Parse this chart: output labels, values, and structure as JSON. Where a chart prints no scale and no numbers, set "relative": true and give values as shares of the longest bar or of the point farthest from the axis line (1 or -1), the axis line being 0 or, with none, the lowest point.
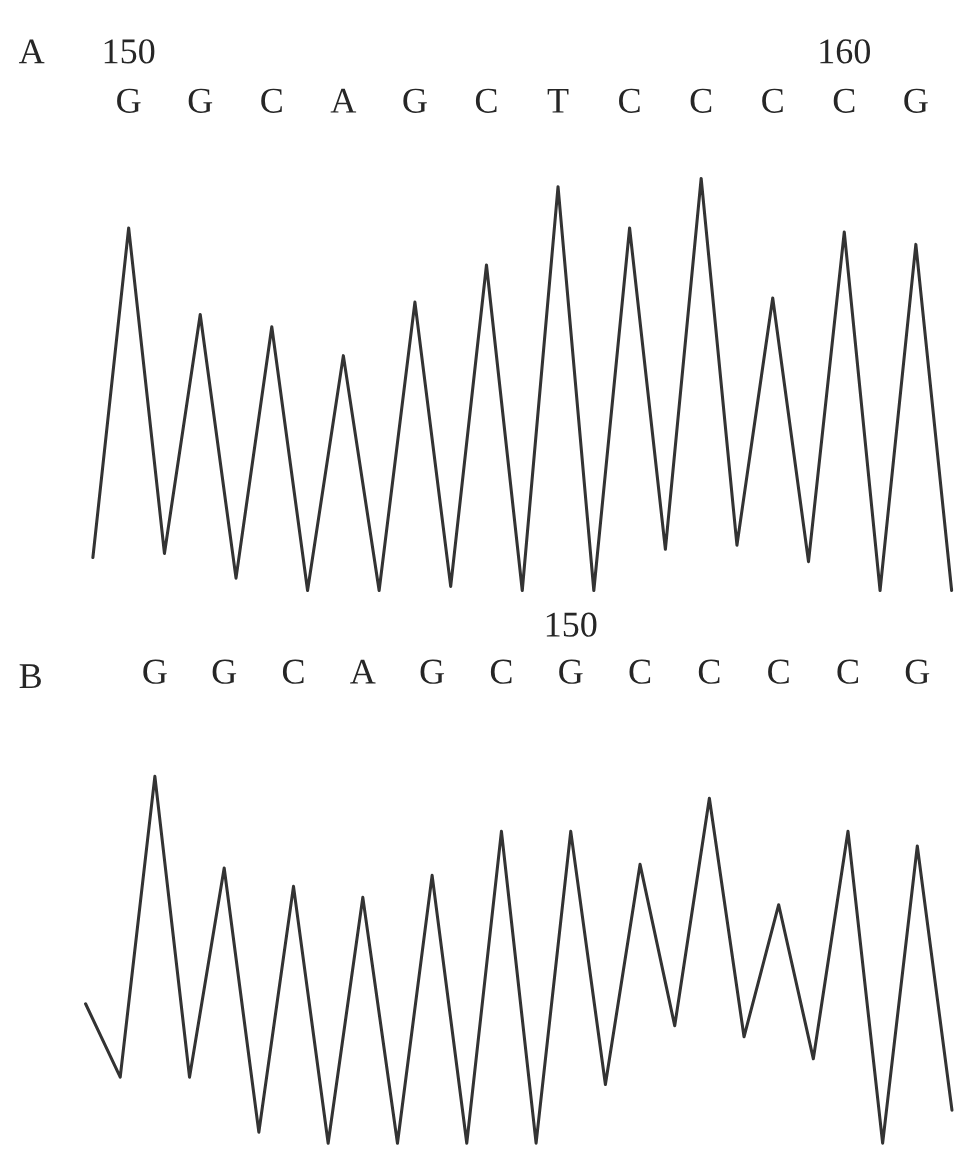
{
  "chart_data": [
    {
      "type": "line",
      "title": "A",
      "relative": true,
      "tick_labels": "x",
      "grid": false,
      "legend": false,
      "marker": "none",
      "line_style": "solid",
      "categories": [
        null,
        "G",
        null,
        "G",
        null,
        "C",
        null,
        "A",
        null,
        "G",
        null,
        "C",
        null,
        "T",
        null,
        "C",
        null,
        "C",
        null,
        "C",
        null,
        "C",
        null,
        "G",
        null
      ],
      "annotations": [
        "150",
        "160"
      ],
      "series": [
        {
          "color": "#333333",
          "values": [
            0.08,
            0.88,
            0.09,
            0.67,
            0.03,
            0.64,
            0.0,
            0.57,
            0.0,
            0.7,
            0.01,
            0.79,
            0.0,
            0.98,
            0.0,
            0.88,
            0.1,
            1.0,
            0.11,
            0.71,
            0.07,
            0.87,
            0.0,
            0.84,
            0.0
          ]
        }
      ]
    },
    {
      "type": "line",
      "title": "B",
      "relative": true,
      "tick_labels": "x",
      "grid": false,
      "legend": false,
      "marker": "none",
      "line_style": "solid",
      "categories": [
        null,
        null,
        "G",
        null,
        "G",
        null,
        "C",
        null,
        "A",
        null,
        "G",
        null,
        "C",
        null,
        "G",
        null,
        "C",
        null,
        "C",
        null,
        "C",
        null,
        "C",
        null,
        "G",
        null
      ],
      "annotations": [
        "150"
      ],
      "series": [
        {
          "color": "#333333",
          "values": [
            0.38,
            0.18,
            1.0,
            0.18,
            0.75,
            0.03,
            0.7,
            0.0,
            0.67,
            0.0,
            0.73,
            0.0,
            0.85,
            0.0,
            0.85,
            0.16,
            0.76,
            0.32,
            0.94,
            0.29,
            0.65,
            0.23,
            0.85,
            0.0,
            0.81,
            0.09
          ]
        }
      ]
    }
  ]
}
